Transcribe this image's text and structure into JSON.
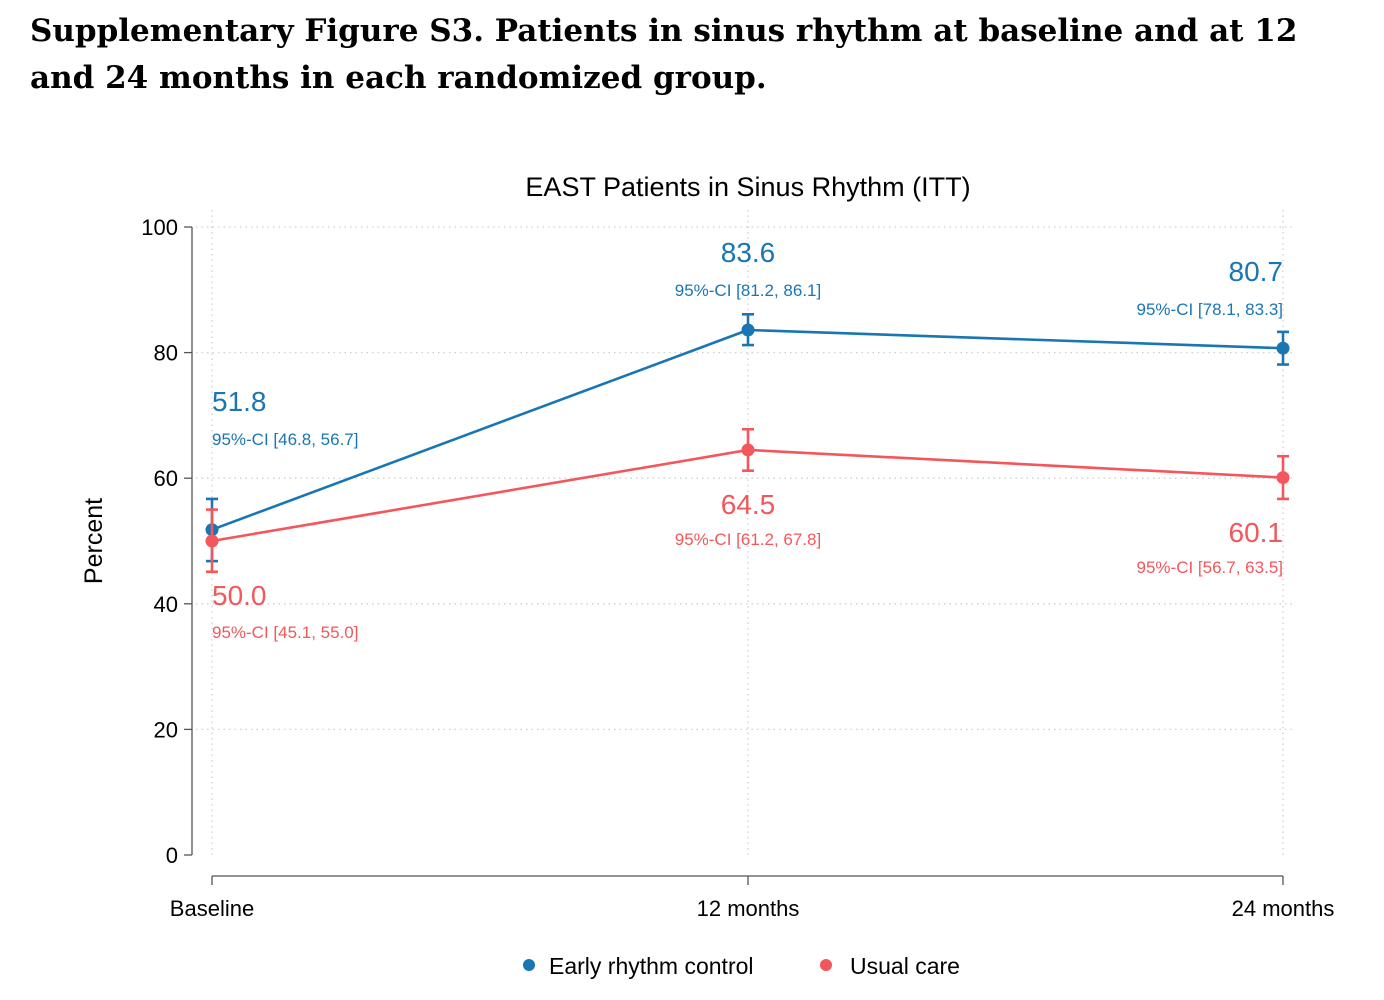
{
  "figure": {
    "caption": "Supplementary Figure S3. Patients in sinus rhythm at baseline and at 12 and 24 months in each randomized group."
  },
  "chart_data": {
    "type": "line",
    "title": "EAST Patients in Sinus Rhythm (ITT)",
    "xlabel": "",
    "ylabel": "Percent",
    "categories": [
      "Baseline",
      "12 months",
      "24 months"
    ],
    "ylim": [
      0,
      100
    ],
    "yticks": [
      0,
      20,
      40,
      60,
      80,
      100
    ],
    "grid": true,
    "legend_position": "bottom",
    "series": [
      {
        "name": "Early rhythm control",
        "color": "#1a76b3",
        "values": [
          51.8,
          83.6,
          80.7
        ],
        "value_labels": [
          "51.8",
          "83.6",
          "80.7"
        ],
        "ci_lower": [
          46.8,
          81.2,
          78.1
        ],
        "ci_upper": [
          56.7,
          86.1,
          83.3
        ],
        "ci_labels": [
          "95%-CI [46.8, 56.7]",
          "95%-CI [81.2, 86.1]",
          "95%-CI [78.1, 83.3]"
        ]
      },
      {
        "name": "Usual care",
        "color": "#f4575b",
        "values": [
          50.0,
          64.5,
          60.1
        ],
        "value_labels": [
          "50.0",
          "64.5",
          "60.1"
        ],
        "ci_lower": [
          45.1,
          61.2,
          56.7
        ],
        "ci_upper": [
          55.0,
          67.8,
          63.5
        ],
        "ci_labels": [
          "95%-CI [45.1, 55.0]",
          "95%-CI [61.2, 67.8]",
          "95%-CI [56.7, 63.5]"
        ]
      }
    ]
  }
}
